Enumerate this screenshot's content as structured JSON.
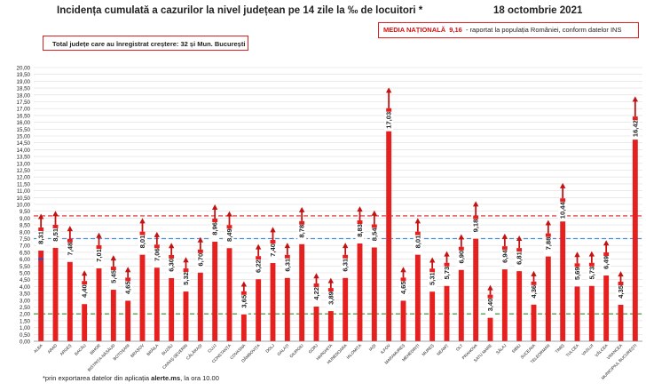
{
  "header": {
    "title": "Incidența cumulată a cazurilor la nivel județean pe 14 zile la ‰ de locuitori *",
    "date": "18 octombrie 2021",
    "box_left": "Total județe care au înregistrat creștere:  32 și Mun. București",
    "national_label": "MEDIA NAȚIONALĂ",
    "national_value": "9,16",
    "national_note": "raportat la populația României, conform datelor INS"
  },
  "footnote": {
    "prefix": "*prin exportarea datelor din aplicația ",
    "app": "alerte.ms",
    "suffix": ", la ora 10.00"
  },
  "chart_data": {
    "type": "bar",
    "title": "Incidența cumulată a cazurilor la nivel județean pe 14 zile la ‰ de locuitori *",
    "ylim": [
      0,
      20
    ],
    "y_tick_step": 0.5,
    "y_tick_labels": [
      "0,00",
      "0,50",
      "1,00",
      "1,50",
      "2,00",
      "2,50",
      "3,00",
      "3,50",
      "4,00",
      "4,50",
      "5,00",
      "5,50",
      "6,00",
      "6,50",
      "7,00",
      "7,50",
      "8,00",
      "8,50",
      "9,00",
      "9,50",
      "10,00",
      "10,50",
      "11,00",
      "11,50",
      "12,00",
      "12,50",
      "13,00",
      "13,50",
      "14,00",
      "14,50",
      "15,00",
      "15,50",
      "16,00",
      "16,50",
      "17,00",
      "17,50",
      "18,00",
      "18,50",
      "19,00",
      "19,50",
      "20,00"
    ],
    "categories": [
      "ALBA",
      "ARAD",
      "ARGEȘ",
      "BACĂU",
      "BIHOR",
      "BISTRIȚA-NĂSĂUD",
      "BOTOȘANI",
      "BRAȘOV",
      "BRĂILA",
      "BUZĂU",
      "CARAȘ-SEVERIN",
      "CĂLĂRAȘI",
      "CLUJ",
      "CONSTANȚA",
      "COVASNA",
      "DÂMBOVIȚA",
      "DOLJ",
      "GALAȚI",
      "GIURGIU",
      "GORJ",
      "HARGHITA",
      "HUNEDOARA",
      "IALOMIȚA",
      "IAȘI",
      "ILFOV",
      "MARAMUREȘ",
      "MEHEDINȚI",
      "MUREȘ",
      "NEAMȚ",
      "OLT",
      "PRAHOVA",
      "SATU MARE",
      "SĂLAJ",
      "SIBIU",
      "SUCEAVA",
      "TELEORMAN",
      "TIMIȘ",
      "TULCEA",
      "VASLUI",
      "VÂLCEA",
      "VRANCEA",
      "MUNICIPIUL BUCUREȘTI"
    ],
    "values": [
      8.31,
      8.51,
      7.48,
      4.4,
      7.01,
      5.45,
      4.65,
      8.01,
      7.06,
      6.3,
      5.32,
      6.7,
      8.96,
      8.49,
      3.65,
      6.22,
      7.4,
      6.31,
      8.78,
      4.22,
      3.89,
      6.31,
      8.83,
      8.54,
      17.03,
      4.65,
      8.01,
      5.31,
      5.73,
      6.9,
      9.18,
      3.4,
      6.94,
      6.81,
      4.36,
      7.88,
      10.44,
      5.69,
      5.73,
      6.49,
      4.35,
      16.42
    ],
    "value_labels": [
      "8,31",
      "8,51",
      "7,48",
      "4,40",
      "7,01",
      "5,45",
      "4,65",
      "8,01",
      "7,06",
      "6,30",
      "5,32",
      "6,70",
      "8,96",
      "8,49",
      "3,65",
      "6,22",
      "7,40",
      "6,31",
      "8,78",
      "4,22",
      "3,89",
      "6,31",
      "8,83",
      "8,54",
      "17,03",
      "4,65",
      "8,01",
      "5,31",
      "5,73",
      "6,90",
      "9,18",
      "3,40",
      "6,94",
      "6,81",
      "4,36",
      "7,88",
      "10,44",
      "5,69",
      "5,73",
      "6,49",
      "4,35",
      "16,42"
    ],
    "trend_up": true,
    "reference_lines": [
      {
        "value": 9.16,
        "style": "dashed",
        "color": "#e02020"
      },
      {
        "value": 7.5,
        "style": "dashed",
        "color": "#4a8fd0"
      },
      {
        "value": 2.0,
        "style": "dashed",
        "color": "#2e8b2e"
      }
    ],
    "extra_mark": {
      "category": "ALBA",
      "value": 6.0,
      "color": "#1f4fd0"
    },
    "colors": {
      "bar": "#e61f1f",
      "arrow": "#c21212",
      "grid": "#dcdcdc"
    },
    "grid": true,
    "legend": "none"
  }
}
